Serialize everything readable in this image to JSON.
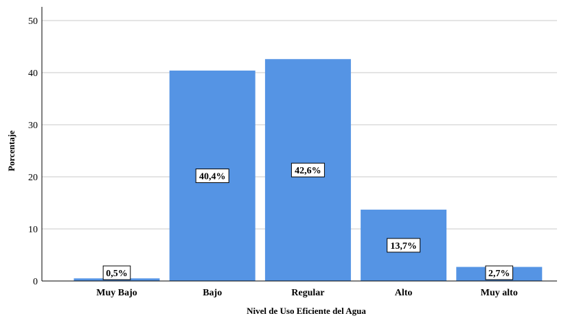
{
  "chart_data": {
    "type": "bar",
    "categories": [
      "Muy Bajo",
      "Bajo",
      "Regular",
      "Alto",
      "Muy alto"
    ],
    "values": [
      0.5,
      40.4,
      42.6,
      13.7,
      2.7
    ],
    "data_labels": [
      "0,5%",
      "40,4%",
      "42,6%",
      "13,7%",
      "2,7%"
    ],
    "xlabel": "Nivel de Uso Eficiente del Agua",
    "ylabel": "Porcentaje",
    "ylim": [
      0,
      50
    ],
    "yticks": [
      0,
      10,
      20,
      30,
      40,
      50
    ],
    "grid": true,
    "bar_color": "#5594e4"
  }
}
